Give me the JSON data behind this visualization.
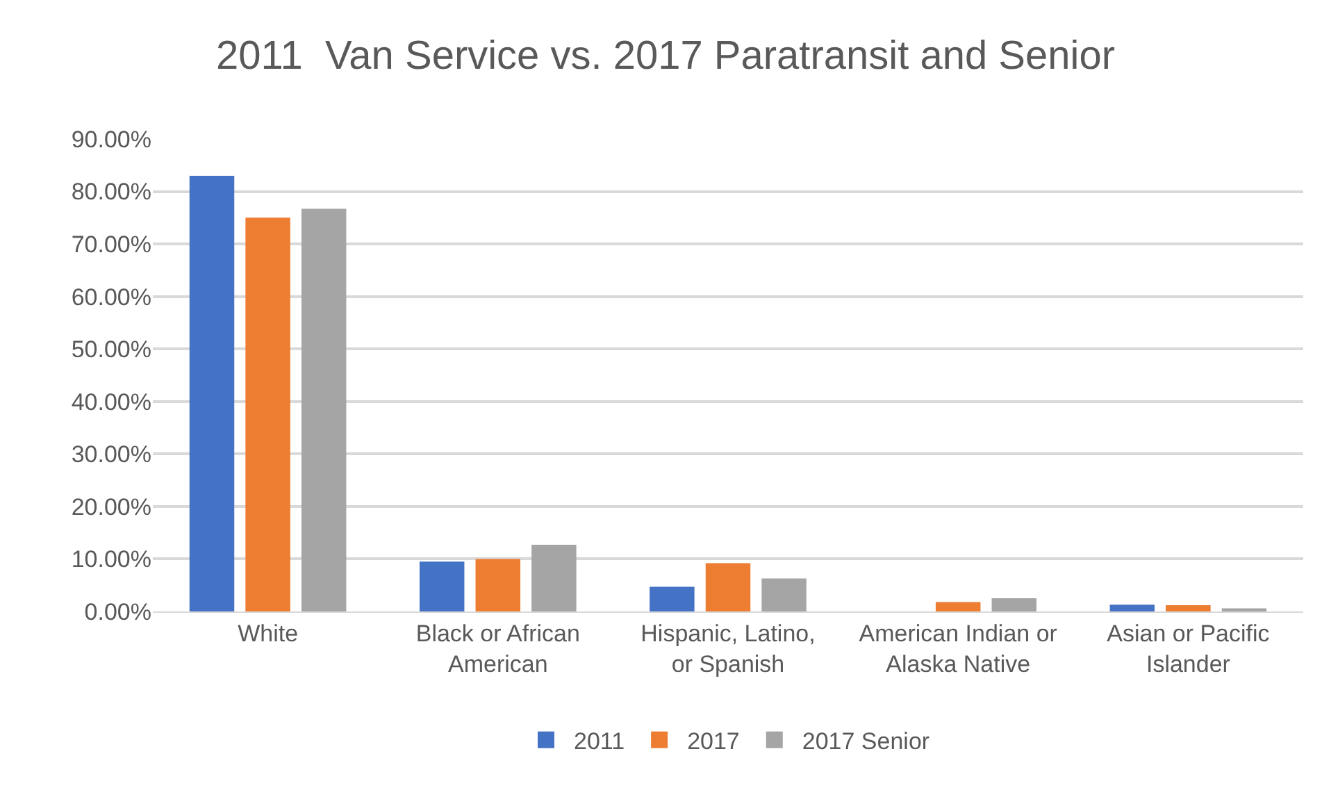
{
  "chart_data": {
    "type": "bar",
    "title": "2011  Van Service vs. 2017 Paratransit and Senior",
    "categories": [
      "White",
      "Black or African American",
      "Hispanic, Latino, or Spanish",
      "American Indian or Alaska Native",
      "Asian or Pacific Islander"
    ],
    "series": [
      {
        "name": "2011",
        "color": "#4472c4",
        "values": [
          83.0,
          9.5,
          4.7,
          0,
          1.3
        ]
      },
      {
        "name": "2017",
        "color": "#ed7d31",
        "values": [
          75.0,
          10.0,
          9.2,
          1.8,
          1.2
        ]
      },
      {
        "name": "2017 Senior",
        "color": "#a5a5a5",
        "values": [
          76.7,
          12.7,
          6.3,
          2.5,
          0.6
        ]
      }
    ],
    "ylim": [
      0,
      90
    ],
    "yticks": [
      {
        "value": 0,
        "label": "0.00%"
      },
      {
        "value": 10,
        "label": "10.00%"
      },
      {
        "value": 20,
        "label": "20.00%"
      },
      {
        "value": 30,
        "label": "30.00%"
      },
      {
        "value": 40,
        "label": "40.00%"
      },
      {
        "value": 50,
        "label": "50.00%"
      },
      {
        "value": 60,
        "label": "60.00%"
      },
      {
        "value": 70,
        "label": "70.00%"
      },
      {
        "value": 80,
        "label": "80.00%"
      },
      {
        "value": 90,
        "label": "90.00%"
      }
    ],
    "grid": "y",
    "legend": "bottom"
  }
}
